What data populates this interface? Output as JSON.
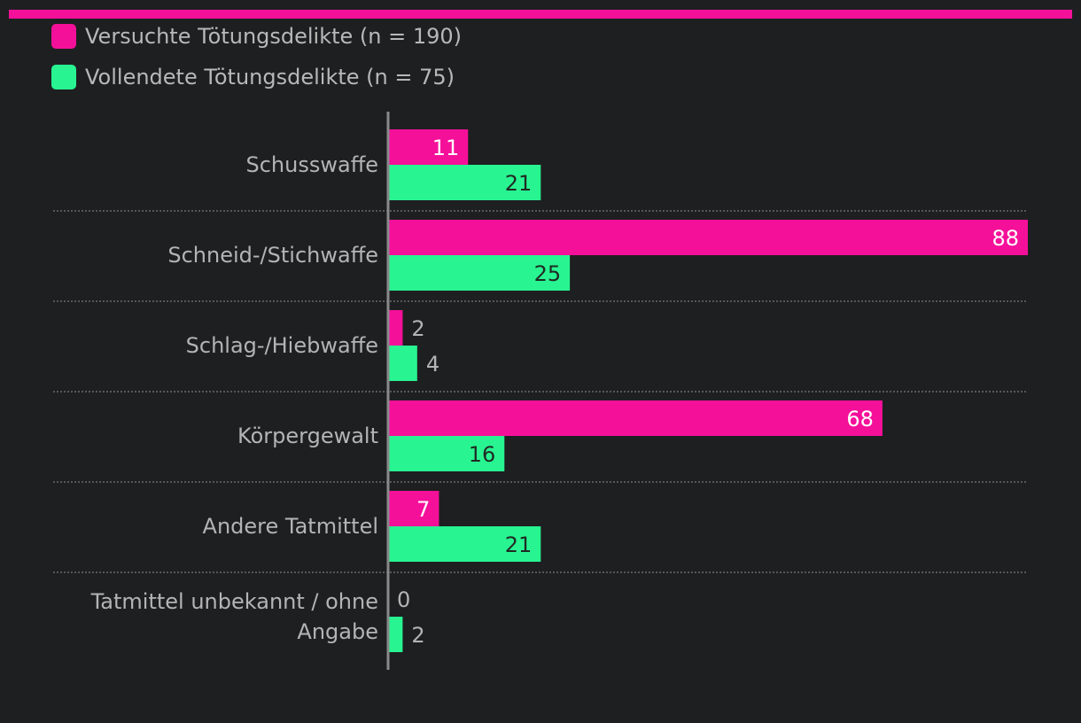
{
  "colors": {
    "background": "#1e1f21",
    "versucht": "#f5109a",
    "vollendet": "#28f591",
    "axis": "#8a8a8a",
    "separator": "#6a6a6a",
    "label": "#b4b4b4",
    "value_inside_versucht": "#ffffff",
    "value_inside_vollendet": "#1f2a24",
    "value_outside": "#b4b4b4"
  },
  "legend": [
    {
      "label": "Versuchte Tötungsdelikte (n = 190)",
      "color": "#f5109a"
    },
    {
      "label": "Vollendete Tötungsdelikte (n = 75)",
      "color": "#28f591"
    }
  ],
  "chart_data": {
    "type": "bar",
    "orientation": "horizontal",
    "categories": [
      [
        "Schusswaffe"
      ],
      [
        "Schneid-/Stichwaffe"
      ],
      [
        "Schlag-/Hiebwaffe"
      ],
      [
        "Körpergewalt"
      ],
      [
        "Andere Tatmittel"
      ],
      [
        "Tatmittel unbekannt / ohne",
        "Angabe"
      ]
    ],
    "series": [
      {
        "name": "Versuchte Tötungsdelikte (n = 190)",
        "color": "#f5109a",
        "values": [
          11,
          88,
          2,
          68,
          7,
          0
        ]
      },
      {
        "name": "Vollendete Tötungsdelikte (n = 75)",
        "color": "#28f591",
        "values": [
          21,
          25,
          4,
          16,
          21,
          2
        ]
      }
    ],
    "xlim": [
      0,
      88
    ],
    "grid": false,
    "legend_position": "top-left",
    "data_labels": true
  }
}
